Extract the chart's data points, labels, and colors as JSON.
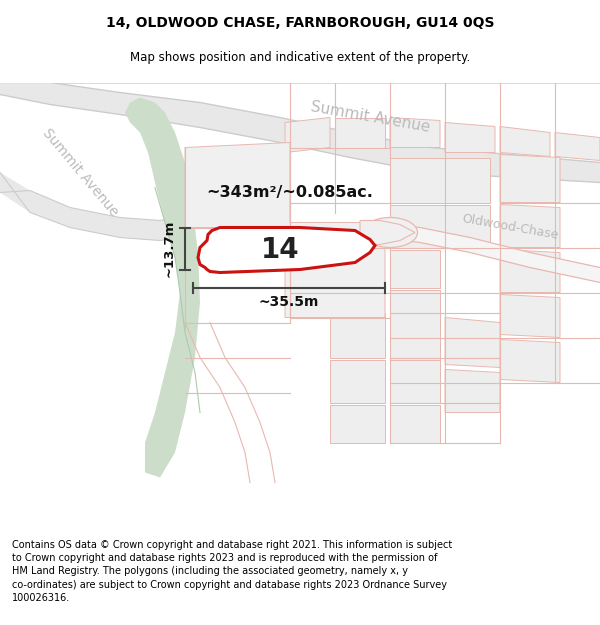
{
  "title_line1": "14, OLDWOOD CHASE, FARNBOROUGH, GU14 0QS",
  "title_line2": "Map shows position and indicative extent of the property.",
  "footer_text": "Contains OS data © Crown copyright and database right 2021. This information is subject to Crown copyright and database rights 2023 and is reproduced with the permission of HM Land Registry. The polygons (including the associated geometry, namely x, y co-ordinates) are subject to Crown copyright and database rights 2023 Ordnance Survey 100026316.",
  "area_label": "~343m²/~0.085ac.",
  "width_label": "~35.5m",
  "height_label": "~13.7m",
  "plot_number": "14",
  "map_bg": "#ffffff",
  "green_color": "#ccdeca",
  "road_bg_color": "#e8e8e8",
  "plot_line_color": "#e8b8b0",
  "plot_fill_color": "#eeeeee",
  "highlight_color": "#cc1111",
  "dim_color": "#444444",
  "street_color": "#aaaaaa",
  "title_fontsize": 10,
  "subtitle_fontsize": 8.5,
  "footer_fontsize": 7.0
}
